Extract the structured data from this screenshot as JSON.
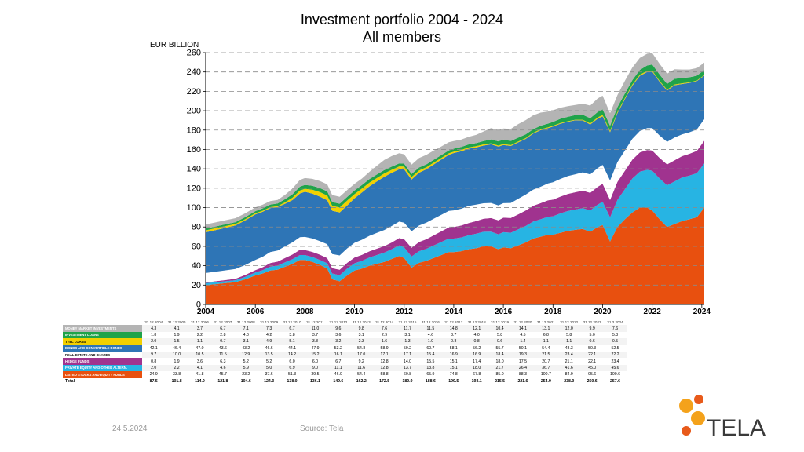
{
  "header": {
    "title_line1": "Investment portfolio 2004 - 2024",
    "title_line2": "All members"
  },
  "footer": {
    "date": "24.5.2024",
    "source": "Source: Tela"
  },
  "logo": {
    "text": "TELA"
  },
  "colors": {
    "listed": "#e8500f",
    "private_equity": "#27b4e3",
    "hedge": "#a0338f",
    "real_estate": "#ffffff",
    "bonds": "#2e75b6",
    "tyel": "#f2d000",
    "loans": "#1fa34a",
    "money": "#b4b4b4",
    "logo_orange": "#f4a21b",
    "logo_red": "#e85a1a",
    "logo_text": "#3a3a3a"
  },
  "chart_data": {
    "type": "area",
    "stacked": true,
    "title": "Investment portfolio 2004 - 2024 All members",
    "ylabel": "EUR BILLION",
    "ylim": [
      0,
      260
    ],
    "yticks": [
      "0",
      "20",
      "40",
      "60",
      "80",
      "100",
      "120",
      "140",
      "160",
      "180",
      "200",
      "220",
      "240",
      "260"
    ],
    "xlim": [
      2004,
      2024.1
    ],
    "xticks": [
      "2004",
      "2006",
      "2008",
      "2010",
      "2012",
      "2014",
      "2016",
      "2018",
      "2020",
      "2022",
      "2024"
    ],
    "grid": "horizontal dashed",
    "x": [
      2004.0,
      2004.4,
      2004.8,
      2005.2,
      2005.6,
      2006.0,
      2006.3,
      2006.6,
      2006.9,
      2007.2,
      2007.5,
      2007.8,
      2008.0,
      2008.3,
      2008.6,
      2008.9,
      2009.1,
      2009.4,
      2009.7,
      2010.0,
      2010.3,
      2010.6,
      2010.9,
      2011.2,
      2011.5,
      2011.8,
      2012.0,
      2012.3,
      2012.6,
      2012.9,
      2013.2,
      2013.5,
      2013.8,
      2014.0,
      2014.3,
      2014.6,
      2014.9,
      2015.2,
      2015.5,
      2015.8,
      2016.0,
      2016.3,
      2016.6,
      2016.9,
      2017.2,
      2017.5,
      2017.8,
      2018.0,
      2018.3,
      2018.6,
      2018.9,
      2019.2,
      2019.5,
      2019.8,
      2020.0,
      2020.3,
      2020.6,
      2020.9,
      2021.2,
      2021.5,
      2021.8,
      2022.0,
      2022.3,
      2022.6,
      2022.9,
      2023.2,
      2023.5,
      2023.8,
      2024.1
    ],
    "series": [
      {
        "name": "LISTED STOCKS AND EQUITY FUNDS",
        "color": "#e8500f",
        "values": [
          20,
          21,
          22,
          23,
          26,
          30,
          32,
          35,
          36,
          39,
          42,
          46,
          46,
          44,
          41,
          37,
          26,
          24,
          30,
          35,
          37,
          40,
          42,
          44,
          47,
          50,
          48,
          38,
          43,
          45,
          48,
          51,
          54,
          54,
          55,
          57,
          58,
          60,
          60,
          57,
          59,
          58,
          61,
          64,
          68,
          70,
          72,
          72,
          74,
          76,
          77,
          78,
          75,
          80,
          82,
          65,
          80,
          88,
          95,
          100,
          100,
          97,
          88,
          80,
          83,
          86,
          88,
          90,
          100
        ]
      },
      {
        "name": "PRIVATE EQUITY AND OTHER ALTERNATIVE INVESTMENTS",
        "color": "#27b4e3",
        "values": [
          2,
          2,
          2,
          2,
          2.5,
          3,
          3.5,
          4,
          4.2,
          4.5,
          4.7,
          5,
          5,
          5,
          5,
          5.5,
          6,
          6.2,
          7,
          7.5,
          8,
          8.5,
          9,
          9.5,
          10,
          11,
          11,
          11.5,
          12,
          12.5,
          13,
          13.5,
          14,
          14,
          14.2,
          14.5,
          15,
          15,
          15.2,
          15.4,
          15.6,
          16,
          16.5,
          17,
          17.5,
          18,
          18.5,
          19,
          20,
          20.5,
          21,
          21.5,
          22,
          23,
          24,
          25,
          28,
          31,
          35,
          37,
          39,
          41,
          42,
          43,
          44,
          45,
          45,
          45.5,
          45.6
        ]
      },
      {
        "name": "HEDGE FUNDS",
        "color": "#a0338f",
        "values": [
          0.8,
          1,
          1.2,
          1.5,
          2,
          2.5,
          3,
          3.8,
          4,
          4.5,
          5,
          5.5,
          5.2,
          5.3,
          5.4,
          5.4,
          5.5,
          5.7,
          5.9,
          6,
          6.2,
          6.4,
          6.6,
          6.8,
          7,
          7.5,
          8.5,
          9,
          9.5,
          10,
          10.5,
          11,
          11.5,
          12,
          12.3,
          12.6,
          13,
          13.5,
          14,
          14.5,
          15,
          15.3,
          15.6,
          16,
          16.3,
          16.6,
          17,
          17.2,
          17.4,
          17.6,
          17.8,
          18,
          18.2,
          18.4,
          18.6,
          18,
          18.5,
          19,
          19.5,
          20,
          20.5,
          21,
          21.3,
          21.6,
          21.9,
          22.1,
          22.5,
          23,
          23.4
        ]
      },
      {
        "name": "REAL ESTATE AND SHARES",
        "color": "#ffffff",
        "values": [
          9.7,
          9.8,
          10,
          10.1,
          10.3,
          10.5,
          10.8,
          11.2,
          11.5,
          12,
          12.5,
          13,
          13.5,
          13.8,
          14,
          14.2,
          14.5,
          14.7,
          14.9,
          15.2,
          15.6,
          16,
          16.3,
          16.6,
          17,
          17,
          17,
          17,
          17,
          17.1,
          17.1,
          17.1,
          17.1,
          17.1,
          17.3,
          17.6,
          17.1,
          16,
          15.6,
          15.4,
          15,
          15.5,
          16,
          16.4,
          16.6,
          16.9,
          17.5,
          17.9,
          18.2,
          18.4,
          18.6,
          18.9,
          19.1,
          19.3,
          19.5,
          20,
          20.5,
          21,
          21.5,
          22,
          22.5,
          23,
          23,
          23.2,
          23.4,
          22.5,
          22.2,
          22.1,
          22.2
        ]
      },
      {
        "name": "BONDS AND CONVERTIBLE BONDS",
        "color": "#2e75b6",
        "values": [
          42,
          43,
          44,
          45,
          46,
          47,
          46.5,
          45.5,
          45,
          44,
          43.6,
          45,
          46.6,
          46.3,
          46,
          45.5,
          44.8,
          44.4,
          44.3,
          46,
          48.8,
          51,
          53,
          55,
          54.8,
          54,
          55,
          53.5,
          54.5,
          55,
          56,
          57,
          57.8,
          59.2,
          59.3,
          59.1,
          59,
          59.5,
          60.5,
          60.7,
          60,
          58.8,
          58.2,
          57.5,
          58,
          58.4,
          57,
          57.6,
          57,
          56,
          55.7,
          53.5,
          51.5,
          51,
          50.1,
          49.8,
          50.5,
          53,
          55,
          57,
          58,
          58.3,
          55.5,
          53,
          54,
          52,
          51,
          50,
          45
        ]
      },
      {
        "name": "TYEL LOANS",
        "color": "#f2d000",
        "values": [
          2,
          1.9,
          1.7,
          1.5,
          1.3,
          1.1,
          1,
          0.9,
          0.8,
          1.5,
          2.4,
          3.1,
          3.1,
          4,
          4.6,
          4.9,
          5,
          5.1,
          5.1,
          4.2,
          4,
          3.8,
          3.6,
          3.4,
          3.2,
          3,
          2.8,
          2.5,
          2.3,
          2.1,
          1.9,
          1.7,
          1.6,
          1.5,
          1.4,
          1.3,
          1.3,
          1.2,
          1.1,
          1,
          1,
          0.9,
          0.9,
          0.8,
          0.8,
          0.8,
          0.8,
          0.7,
          0.7,
          0.6,
          0.6,
          0.8,
          1.1,
          1.3,
          1.4,
          1.3,
          1.2,
          1.1,
          1.1,
          1.1,
          1.1,
          1.1,
          1,
          0.9,
          0.8,
          0.7,
          0.6,
          0.6,
          0.5
        ]
      },
      {
        "name": "INVESTMENT LOANS",
        "color": "#1fa34a",
        "values": [
          1.8,
          1.8,
          1.9,
          1.9,
          2.1,
          2.2,
          2.4,
          2.6,
          2.8,
          3.2,
          3.6,
          4,
          4,
          4.1,
          4.2,
          4.2,
          4,
          3.9,
          3.8,
          3.8,
          3.7,
          3.7,
          3.6,
          3.4,
          3.2,
          3.1,
          3.1,
          3.1,
          3,
          3,
          2.9,
          2.9,
          2.9,
          3,
          3.1,
          3.1,
          3.1,
          3.5,
          4,
          4.4,
          4.6,
          4.3,
          4,
          3.8,
          3.7,
          3.8,
          3.9,
          4,
          4.3,
          4.6,
          4.8,
          5.1,
          5.4,
          5.6,
          5.8,
          5.4,
          5,
          4.7,
          4.5,
          5,
          5.6,
          6.2,
          6.5,
          6,
          5.8,
          5.5,
          5.2,
          5,
          5.3
        ]
      },
      {
        "name": "MONEY MARKET INVESTMENTS",
        "color": "#b4b4b4",
        "values": [
          4.3,
          4.2,
          4.2,
          4.1,
          4,
          3.9,
          3.8,
          3.7,
          3.7,
          4.5,
          6,
          7,
          7.1,
          7.2,
          7.3,
          7.3,
          7.2,
          7.1,
          7,
          6.8,
          6.7,
          7.5,
          9,
          10.5,
          11,
          10.5,
          9.6,
          9.7,
          9.8,
          9.8,
          9.5,
          8.9,
          8.5,
          7.9,
          7.6,
          7.8,
          8.5,
          9.8,
          11.7,
          11.5,
          11.5,
          12.5,
          14,
          14.8,
          14.3,
          13.5,
          12.5,
          12.1,
          11.5,
          11,
          10.4,
          11.5,
          13,
          14,
          14.1,
          13,
          12.5,
          13.1,
          13,
          12.5,
          12.2,
          12,
          11,
          10.5,
          9.9,
          8.7,
          8,
          7.8,
          7.6
        ]
      }
    ],
    "table": {
      "dates": [
        "31.12.2004",
        "31.12.2005",
        "31.12.2006",
        "31.12.2007",
        "31.12.2008",
        "31.12.2009",
        "31.12.2010",
        "31.12.2011",
        "31.12.2012",
        "31.12.2013",
        "31.12.2014",
        "31.12.2015",
        "31.12.2016",
        "31.12.2017",
        "31.12.2018",
        "31.12.2019",
        "31.12.2020",
        "31.12.2021",
        "31.12.2022",
        "31.12.2023",
        "31.3.2024"
      ],
      "rows": [
        {
          "label": "MONEY MARKET INVESTMENTS",
          "color": "#b4b4b4",
          "values": [
            "4.3",
            "4.1",
            "3.7",
            "6.7",
            "7.1",
            "7.3",
            "6.7",
            "11.0",
            "9.6",
            "9.8",
            "7.6",
            "11.7",
            "11.5",
            "14.8",
            "12.1",
            "10.4",
            "14.1",
            "13.1",
            "12.0",
            "9.9",
            "7.6"
          ]
        },
        {
          "label": "INVESTMENT LOANS",
          "color": "#1fa34a",
          "values": [
            "1.8",
            "1.9",
            "2.2",
            "2.8",
            "4.0",
            "4.2",
            "3.8",
            "3.7",
            "3.6",
            "3.1",
            "2.9",
            "3.1",
            "4.6",
            "3.7",
            "4.0",
            "5.8",
            "4.5",
            "6.8",
            "5.8",
            "5.0",
            "5.3"
          ]
        },
        {
          "label": "TYEL LOANS",
          "color": "#f2d000",
          "values": [
            "2.0",
            "1.5",
            "1.1",
            "0.7",
            "3.1",
            "4.9",
            "5.1",
            "3.8",
            "3.2",
            "2.3",
            "1.6",
            "1.3",
            "1.0",
            "0.8",
            "0.8",
            "0.6",
            "1.4",
            "1.1",
            "1.1",
            "0.6",
            "0.5"
          ]
        },
        {
          "label": "BONDS AND CONVERTIBLE BONDS",
          "color": "#2e75b6",
          "values": [
            "42.1",
            "46.4",
            "47.0",
            "43.6",
            "43.2",
            "46.6",
            "44.1",
            "47.9",
            "53.2",
            "54.8",
            "58.9",
            "59.2",
            "60.7",
            "58.1",
            "56.2",
            "55.7",
            "50.1",
            "54.4",
            "48.3",
            "50.3",
            "52.5"
          ]
        },
        {
          "label": "REAL ESTATE AND SHARES",
          "color": "#ffffff",
          "values": [
            "9.7",
            "10.0",
            "10.5",
            "11.5",
            "12.9",
            "13.5",
            "14.2",
            "15.2",
            "16.1",
            "17.0",
            "17.1",
            "17.1",
            "15.4",
            "16.9",
            "16.9",
            "18.4",
            "19.3",
            "21.5",
            "23.4",
            "22.1",
            "22.2"
          ]
        },
        {
          "label": "HEDGE FUNDS",
          "color": "#a0338f",
          "values": [
            "0.8",
            "1.9",
            "3.6",
            "6.3",
            "5.2",
            "5.2",
            "6.0",
            "6.0",
            "6.7",
            "9.2",
            "12.8",
            "14.0",
            "15.5",
            "15.1",
            "17.4",
            "18.0",
            "17.5",
            "20.7",
            "21.1",
            "22.1",
            "23.4"
          ]
        },
        {
          "label": "PRIVATE EQUITY AND OTHER ALTERN.",
          "color": "#27b4e3",
          "values": [
            "2.0",
            "2.2",
            "4.1",
            "4.6",
            "5.9",
            "5.0",
            "6.9",
            "9.0",
            "11.1",
            "11.6",
            "12.8",
            "13.7",
            "13.8",
            "15.1",
            "18.0",
            "21.7",
            "26.4",
            "36.7",
            "41.6",
            "45.0",
            "45.6"
          ]
        },
        {
          "label": "LISTED STOCKS AND EQUITY FUNDS",
          "color": "#e8500f",
          "values": [
            "24.9",
            "33.8",
            "41.8",
            "45.7",
            "23.2",
            "37.6",
            "51.3",
            "39.5",
            "46.0",
            "54.4",
            "58.8",
            "60.8",
            "65.9",
            "74.8",
            "67.8",
            "85.0",
            "88.3",
            "100.7",
            "84.9",
            "95.6",
            "100.6"
          ]
        }
      ],
      "total": {
        "label": "Total",
        "values": [
          "87.5",
          "101.8",
          "114.0",
          "121.8",
          "104.6",
          "124.3",
          "138.0",
          "136.1",
          "149.6",
          "162.2",
          "172.5",
          "180.9",
          "188.6",
          "199.5",
          "193.1",
          "215.5",
          "221.6",
          "254.9",
          "238.0",
          "250.6",
          "257.6"
        ]
      }
    }
  }
}
